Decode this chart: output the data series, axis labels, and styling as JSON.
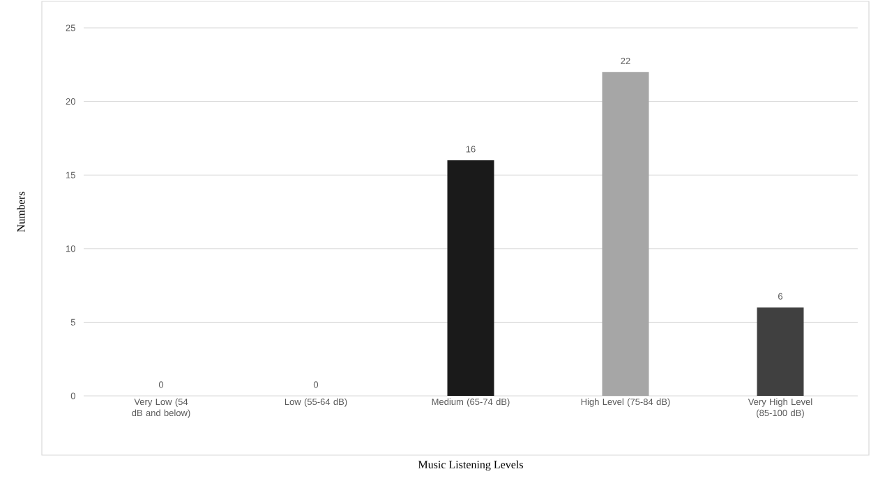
{
  "chart_data": {
    "type": "bar",
    "xlabel": "Music Listening Levels",
    "ylabel": "Numbers",
    "categories": [
      "Very Low (54 dB and below)",
      "Low (55-64 dB)",
      "Medium (65-74 dB)",
      "High Level (75-84 dB)",
      "Very High Level (85-100 dB)"
    ],
    "values": [
      0,
      0,
      16,
      22,
      6
    ],
    "colors": [
      "#7f7f7f",
      "#595959",
      "#1a1a1a",
      "#a6a6a6",
      "#404040"
    ],
    "ylim": [
      0,
      25
    ],
    "yticks": [
      0,
      5,
      10,
      15,
      20,
      25
    ],
    "grid": "y",
    "data_labels": true
  }
}
